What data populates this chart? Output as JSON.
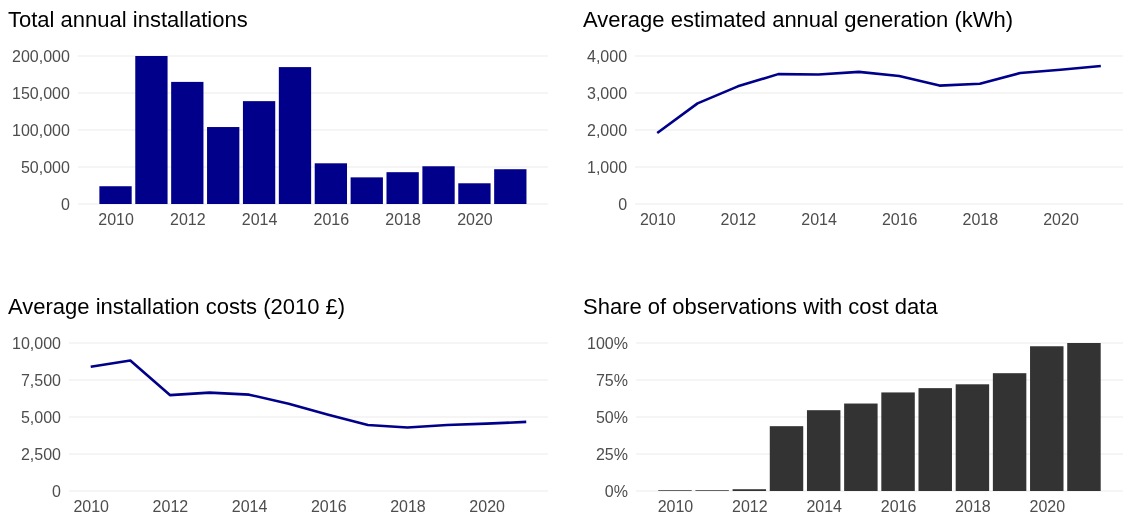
{
  "chart_data": [
    {
      "type": "bar",
      "title": "Total annual installations",
      "x": [
        2010,
        2011,
        2012,
        2013,
        2014,
        2015,
        2016,
        2017,
        2018,
        2019,
        2020,
        2021
      ],
      "values": [
        24000,
        200000,
        165000,
        104000,
        139000,
        185000,
        55000,
        36000,
        43000,
        51000,
        28000,
        47000
      ],
      "color": "#00008b",
      "xlim": [
        2008.95,
        2022.05
      ],
      "xticks": [
        2010,
        2012,
        2014,
        2016,
        2018,
        2020
      ],
      "ylim": [
        0,
        200000
      ],
      "yticks": [
        {
          "value": 0,
          "label": "0"
        },
        {
          "value": 50000,
          "label": "50,000"
        },
        {
          "value": 100000,
          "label": "100,000"
        },
        {
          "value": 150000,
          "label": "150,000"
        },
        {
          "value": 200000,
          "label": "200,000"
        }
      ],
      "grid": "y"
    },
    {
      "type": "line",
      "title": "Average estimated annual generation (kWh)",
      "x": [
        2010,
        2011,
        2012,
        2013,
        2014,
        2015,
        2016,
        2017,
        2018,
        2019,
        2020,
        2021
      ],
      "values": [
        1920,
        2720,
        3180,
        3510,
        3500,
        3570,
        3460,
        3200,
        3250,
        3540,
        3630,
        3730
      ],
      "color": "#00008b",
      "xlim": [
        2009.45,
        2021.55
      ],
      "xticks": [
        2010,
        2012,
        2014,
        2016,
        2018,
        2020
      ],
      "ylim": [
        0,
        4000
      ],
      "yticks": [
        {
          "value": 0,
          "label": "0"
        },
        {
          "value": 1000,
          "label": "1,000"
        },
        {
          "value": 2000,
          "label": "2,000"
        },
        {
          "value": 3000,
          "label": "3,000"
        },
        {
          "value": 4000,
          "label": "4,000"
        }
      ],
      "grid": "y",
      "marker": "none",
      "line_style": "solid"
    },
    {
      "type": "line",
      "title": "Average installation costs (2010 £)",
      "x": [
        2010,
        2011,
        2012,
        2013,
        2014,
        2015,
        2016,
        2017,
        2018,
        2019,
        2020,
        2021
      ],
      "values": [
        8390,
        8820,
        6480,
        6650,
        6510,
        5900,
        5160,
        4460,
        4290,
        4460,
        4550,
        4670
      ],
      "color": "#00008b",
      "xlim": [
        2009.45,
        2021.55
      ],
      "xticks": [
        2010,
        2012,
        2014,
        2016,
        2018,
        2020
      ],
      "ylim": [
        0,
        10000
      ],
      "yticks": [
        {
          "value": 0,
          "label": "0"
        },
        {
          "value": 2500,
          "label": "2,500"
        },
        {
          "value": 5000,
          "label": "5,000"
        },
        {
          "value": 7500,
          "label": "7,500"
        },
        {
          "value": 10000,
          "label": "10,000"
        }
      ],
      "grid": "y",
      "marker": "none",
      "line_style": "solid"
    },
    {
      "type": "bar",
      "title": "Share of observations with cost data",
      "x": [
        2010,
        2011,
        2012,
        2013,
        2014,
        2015,
        2016,
        2017,
        2018,
        2019,
        2020,
        2021
      ],
      "values": [
        0.5,
        0.5,
        1.2,
        43.8,
        54.6,
        59.1,
        66.6,
        69.5,
        72.1,
        79.6,
        97.8,
        100
      ],
      "color": "#333333",
      "xlim": [
        2008.95,
        2022.05
      ],
      "xticks": [
        2010,
        2012,
        2014,
        2016,
        2018,
        2020
      ],
      "ylim": [
        0,
        100
      ],
      "yticks": [
        {
          "value": 0,
          "label": "0%"
        },
        {
          "value": 25,
          "label": "25%"
        },
        {
          "value": 50,
          "label": "50%"
        },
        {
          "value": 75,
          "label": "75%"
        },
        {
          "value": 100,
          "label": "100%"
        }
      ],
      "grid": "y"
    }
  ]
}
